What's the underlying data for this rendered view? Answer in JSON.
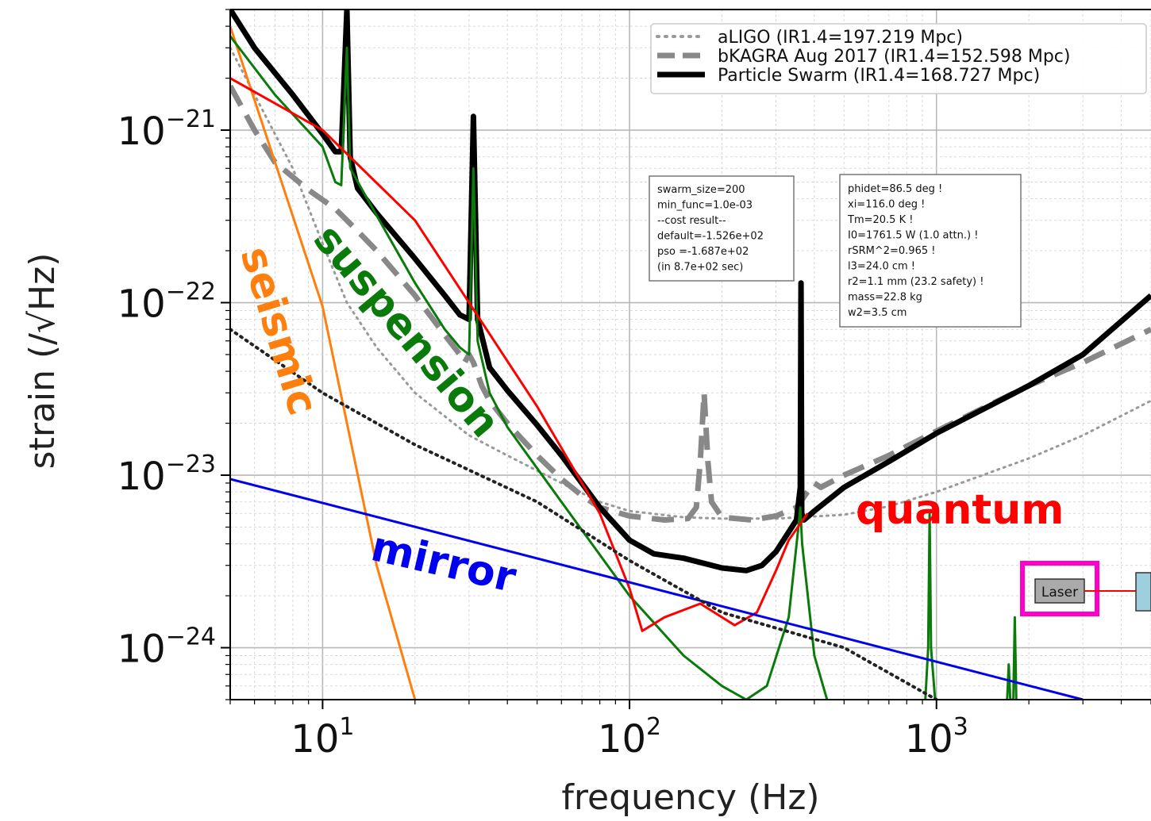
{
  "chart_data": {
    "type": "line",
    "xscale": "log",
    "yscale": "log",
    "xlim": [
      5,
      5000
    ],
    "ylim": [
      5e-25,
      5e-21
    ],
    "xlabel": "frequency (Hz)",
    "ylabel": "strain (/√Hz)",
    "grid": true,
    "legend_position": "top-right",
    "x_ticks": [
      {
        "value": 10,
        "base": "10",
        "exp": "1"
      },
      {
        "value": 100,
        "base": "10",
        "exp": "2"
      },
      {
        "value": 1000,
        "base": "10",
        "exp": "3"
      }
    ],
    "y_ticks": [
      {
        "value": 1e-21,
        "base": "10",
        "exp": "−21"
      },
      {
        "value": 1e-22,
        "base": "10",
        "exp": "−22"
      },
      {
        "value": 1e-23,
        "base": "10",
        "exp": "−23"
      },
      {
        "value": 1e-24,
        "base": "10",
        "exp": "−24"
      }
    ],
    "legend": [
      {
        "label": "aLIGO (IR1.4=197.219 Mpc)",
        "color": "#999999",
        "style": "dotted"
      },
      {
        "label": "bKAGRA Aug 2017 (IR1.4=152.598 Mpc)",
        "color": "#888888",
        "style": "dashed"
      },
      {
        "label": "Particle Swarm (IR1.4=168.727 Mpc)",
        "color": "#000000",
        "style": "solid"
      }
    ],
    "annotations": [
      {
        "text": "seismic",
        "color": "#ff7f0e"
      },
      {
        "text": "suspension",
        "color": "#0a7a0a"
      },
      {
        "text": "quantum",
        "color": "#ff0000"
      },
      {
        "text": "mirror",
        "color": "#0000ee"
      }
    ],
    "info_box_1": [
      "swarm_size=200",
      "min_func=1.0e-03",
      "--cost result--",
      "default=-1.526e+02",
      "pso      =-1.687e+02",
      "(in 8.7e+02 sec)"
    ],
    "info_box_2": [
      "phidet=86.5 deg !",
      "xi=116.0 deg !",
      "Tm=20.5 K !",
      "I0=1761.5 W (1.0 attn.) !",
      "rSRM^2=0.965 !",
      "l3=24.0 cm !",
      "r2=1.1 mm (23.2 safety) !",
      "mass=22.8 kg",
      "w2=3.5 cm"
    ],
    "laser_label": "Laser",
    "series": [
      {
        "name": "aLIGO (IR1.4=197.219 Mpc)",
        "color": "#999999",
        "style": "dotted",
        "width": 3,
        "points": [
          [
            5,
            3e-21
          ],
          [
            8,
            6e-22
          ],
          [
            10,
            2.2e-22
          ],
          [
            12,
            1e-22
          ],
          [
            15,
            5.5e-23
          ],
          [
            20,
            3e-23
          ],
          [
            30,
            1.7e-23
          ],
          [
            40,
            1.3e-23
          ],
          [
            60,
            9e-24
          ],
          [
            80,
            7e-24
          ],
          [
            100,
            6.2e-24
          ],
          [
            150,
            5.7e-24
          ],
          [
            200,
            5.6e-24
          ],
          [
            300,
            5.6e-24
          ],
          [
            500,
            5.9e-24
          ],
          [
            700,
            6.6e-24
          ],
          [
            1000,
            8e-24
          ],
          [
            2000,
            1.25e-23
          ],
          [
            3000,
            1.7e-23
          ],
          [
            5000,
            2.7e-23
          ]
        ]
      },
      {
        "name": "bKAGRA Aug 2017 (IR1.4=152.598 Mpc)",
        "color": "#888888",
        "style": "dashed",
        "width": 7,
        "points": [
          [
            5,
            1.8e-21
          ],
          [
            6,
            1e-21
          ],
          [
            7,
            6.5e-22
          ],
          [
            9,
            4.5e-22
          ],
          [
            11,
            3.5e-22
          ],
          [
            13,
            2.6e-22
          ],
          [
            15,
            2e-22
          ],
          [
            20,
            1.1e-22
          ],
          [
            25,
            6.5e-23
          ],
          [
            28,
            5e-23
          ],
          [
            29,
            4.5e-23
          ],
          [
            30,
            5e-23
          ],
          [
            31,
            4.5e-23
          ],
          [
            33,
            3.3e-23
          ],
          [
            35,
            2.7e-23
          ],
          [
            40,
            2e-23
          ],
          [
            50,
            1.3e-23
          ],
          [
            60,
            9.5e-24
          ],
          [
            70,
            7.6e-24
          ],
          [
            80,
            6.5e-24
          ],
          [
            100,
            5.8e-24
          ],
          [
            130,
            5.5e-24
          ],
          [
            155,
            5.6e-24
          ],
          [
            165,
            6.5e-24
          ],
          [
            170,
            1.2e-23
          ],
          [
            175,
            3e-23
          ],
          [
            180,
            1.2e-23
          ],
          [
            185,
            7e-24
          ],
          [
            200,
            5.7e-24
          ],
          [
            250,
            5.5e-24
          ],
          [
            300,
            5.8e-24
          ],
          [
            350,
            6.5e-24
          ],
          [
            380,
            8e-24
          ],
          [
            400,
            9e-24
          ],
          [
            420,
            8.5e-24
          ],
          [
            500,
            1e-23
          ],
          [
            700,
            1.3e-23
          ],
          [
            1000,
            1.8e-23
          ],
          [
            2000,
            3.3e-23
          ],
          [
            3000,
            4.5e-23
          ],
          [
            5000,
            7e-23
          ]
        ]
      },
      {
        "name": "Particle Swarm (IR1.4=168.727 Mpc)",
        "color": "#000000",
        "style": "solid",
        "width": 7,
        "points": [
          [
            5,
            5e-21
          ],
          [
            6,
            3e-21
          ],
          [
            8,
            1.6e-21
          ],
          [
            10,
            9.5e-22
          ],
          [
            11,
            7.5e-22
          ],
          [
            11.5,
            7.5e-22
          ],
          [
            12,
            5e-21
          ],
          [
            12.3,
            7e-22
          ],
          [
            13,
            4.6e-22
          ],
          [
            15,
            3.3e-22
          ],
          [
            20,
            1.8e-22
          ],
          [
            25,
            1.1e-22
          ],
          [
            28,
            8.5e-23
          ],
          [
            30,
            8e-23
          ],
          [
            31,
            1.2e-21
          ],
          [
            32,
            8e-23
          ],
          [
            35,
            4.2e-23
          ],
          [
            40,
            3.1e-23
          ],
          [
            50,
            1.95e-23
          ],
          [
            60,
            1.3e-23
          ],
          [
            80,
            6.5e-24
          ],
          [
            100,
            4.2e-24
          ],
          [
            120,
            3.5e-24
          ],
          [
            150,
            3.3e-24
          ],
          [
            200,
            2.9e-24
          ],
          [
            240,
            2.8e-24
          ],
          [
            270,
            3e-24
          ],
          [
            300,
            3.6e-24
          ],
          [
            350,
            5.5e-24
          ],
          [
            360,
            8.5e-24
          ],
          [
            362,
            1.3e-22
          ],
          [
            364,
            6e-24
          ],
          [
            370,
            5.5e-24
          ],
          [
            400,
            6.2e-24
          ],
          [
            500,
            8.5e-24
          ],
          [
            700,
            1.2e-23
          ],
          [
            1000,
            1.75e-23
          ],
          [
            2000,
            3.3e-23
          ],
          [
            3000,
            5e-23
          ],
          [
            5000,
            1.1e-22
          ]
        ]
      },
      {
        "name": "",
        "color": "#ff7f0e",
        "style": "solid",
        "width": 3,
        "points": [
          [
            5,
            4e-21
          ],
          [
            10,
            9.5e-23
          ],
          [
            15,
            3e-24
          ],
          [
            20,
            5e-25
          ]
        ]
      },
      {
        "name": "",
        "color": "#0a7a0a",
        "style": "solid",
        "width": 3,
        "points": [
          [
            5,
            3.5e-21
          ],
          [
            7,
            1.6e-21
          ],
          [
            10,
            8e-22
          ],
          [
            11,
            5e-22
          ],
          [
            11.5,
            4.8e-22
          ],
          [
            12,
            3e-21
          ],
          [
            12.3,
            6e-22
          ],
          [
            15,
            3.2e-22
          ],
          [
            20,
            1.3e-22
          ],
          [
            25,
            7e-23
          ],
          [
            28,
            5.5e-23
          ],
          [
            30,
            5e-23
          ],
          [
            31,
            6e-22
          ],
          [
            32,
            6e-23
          ],
          [
            35,
            3e-23
          ],
          [
            40,
            1.9e-23
          ],
          [
            60,
            7e-24
          ],
          [
            100,
            2e-24
          ],
          [
            150,
            9e-25
          ],
          [
            200,
            6e-25
          ],
          [
            240,
            5e-25
          ],
          [
            280,
            6e-25
          ],
          [
            330,
            1.5e-24
          ],
          [
            355,
            5e-24
          ],
          [
            360,
            6.5e-24
          ],
          [
            365,
            4e-24
          ],
          [
            400,
            9e-25
          ],
          [
            440,
            5e-25
          ]
        ]
      },
      {
        "name": "",
        "color": "#0a7a0a",
        "style": "solid",
        "width": 3,
        "points": [
          [
            920,
            5e-25
          ],
          [
            940,
            1e-24
          ],
          [
            950,
            6e-24
          ],
          [
            960,
            1e-24
          ],
          [
            990,
            5e-25
          ]
        ]
      },
      {
        "name": "",
        "color": "#0a7a0a",
        "style": "solid",
        "width": 3,
        "points": [
          [
            1700,
            5e-25
          ],
          [
            1720,
            8e-25
          ],
          [
            1740,
            5e-25
          ],
          [
            1780,
            5e-25
          ],
          [
            1800,
            1.5e-24
          ],
          [
            1820,
            5e-25
          ]
        ]
      },
      {
        "name": "",
        "color": "#ff0000",
        "style": "solid",
        "width": 3,
        "points": [
          [
            5,
            2e-21
          ],
          [
            10,
            1e-21
          ],
          [
            20,
            3e-22
          ],
          [
            30,
            1e-22
          ],
          [
            50,
            2.5e-23
          ],
          [
            80,
            6e-24
          ],
          [
            100,
            2.2e-24
          ],
          [
            110,
            1.25e-24
          ],
          [
            130,
            1.5e-24
          ],
          [
            170,
            1.8e-24
          ],
          [
            220,
            1.35e-24
          ],
          [
            260,
            1.6e-24
          ],
          [
            300,
            2.8e-24
          ],
          [
            330,
            4.2e-24
          ],
          [
            380,
            6e-24
          ]
        ]
      },
      {
        "name": "",
        "color": "#0000ee",
        "style": "solid",
        "width": 3,
        "points": [
          [
            5,
            9.5e-24
          ],
          [
            3000,
            5e-25
          ]
        ]
      },
      {
        "name": "",
        "color": "#222222",
        "style": "dotted",
        "width": 4,
        "points": [
          [
            5,
            7e-23
          ],
          [
            10,
            3e-23
          ],
          [
            20,
            1.5e-23
          ],
          [
            50,
            7e-24
          ],
          [
            100,
            3.2e-24
          ],
          [
            200,
            1.6e-24
          ],
          [
            500,
            1e-24
          ],
          [
            1000,
            5e-25
          ]
        ]
      }
    ]
  }
}
